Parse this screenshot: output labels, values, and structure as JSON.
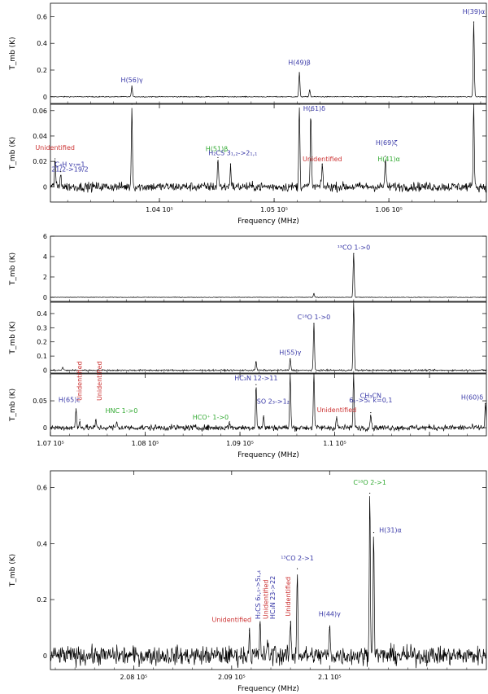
{
  "chart_data": [
    {
      "type": "line",
      "figure_group": 1,
      "panel": "top",
      "xlabel": "",
      "ylabel": "T_mb (K)",
      "xlim": [
        103050,
        106850
      ],
      "ylim": [
        -0.05,
        0.7
      ],
      "yticks": [
        0,
        0.2,
        0.4,
        0.6
      ],
      "xticks": [],
      "peaks": [
        {
          "x": 103760,
          "y": 0.08
        },
        {
          "x": 105220,
          "y": 0.18
        },
        {
          "x": 105310,
          "y": 0.05
        },
        {
          "x": 106740,
          "y": 0.56
        }
      ],
      "annotations": [
        {
          "text": "H(56)γ",
          "x": 103760,
          "y": 0.11,
          "color": "#3a3aa8"
        },
        {
          "text": "H(49)β",
          "x": 105220,
          "y": 0.24,
          "color": "#3a3aa8"
        },
        {
          "text": "H(39)α",
          "x": 106740,
          "y": 0.62,
          "color": "#3a3aa8"
        }
      ]
    },
    {
      "type": "line",
      "figure_group": 1,
      "panel": "bottom",
      "xlabel": "Frequency (MHz)",
      "ylabel": "T_mb (K)",
      "xlim": [
        103050,
        106850
      ],
      "ylim": [
        -0.012,
        0.065
      ],
      "yticks": [
        0,
        0.02,
        0.04,
        0.06
      ],
      "xticks": [
        104000,
        105000,
        106000
      ],
      "xtick_labels": [
        "1.04 10⁵",
        "1.05 10⁵",
        "1.06 10⁵"
      ],
      "peaks": [
        {
          "x": 103090,
          "y": 0.022
        },
        {
          "x": 103140,
          "y": 0.012
        },
        {
          "x": 103760,
          "y": 0.065
        },
        {
          "x": 104510,
          "y": 0.023
        },
        {
          "x": 104620,
          "y": 0.018
        },
        {
          "x": 105220,
          "y": 0.065
        },
        {
          "x": 105320,
          "y": 0.06
        },
        {
          "x": 105420,
          "y": 0.018
        },
        {
          "x": 105970,
          "y": 0.024
        },
        {
          "x": 106740,
          "y": 0.065
        }
      ],
      "annotations": [
        {
          "text": "Unidentified",
          "x": 103090,
          "y": 0.029,
          "color": "#cc3333"
        },
        {
          "text": "C₄H v₇=1",
          "x": 103220,
          "y": 0.016,
          "color": "#3a3aa8"
        },
        {
          "text": "21/2->19/2",
          "x": 103220,
          "y": 0.012,
          "color": "#3a3aa8"
        },
        {
          "text": "H(51)β",
          "x": 104500,
          "y": 0.028,
          "color": "#33aa33"
        },
        {
          "text": "H₂CS 3₁,₂->2₁,₁",
          "x": 104640,
          "y": 0.025,
          "color": "#3a3aa8"
        },
        {
          "text": "H(61)δ",
          "x": 105350,
          "y": 0.06,
          "color": "#3a3aa8"
        },
        {
          "text": "Unidentified",
          "x": 105420,
          "y": 0.02,
          "color": "#cc3333"
        },
        {
          "text": "H(69)ζ",
          "x": 105980,
          "y": 0.033,
          "color": "#3a3aa8"
        },
        {
          "text": "H(41)α",
          "x": 106000,
          "y": 0.02,
          "color": "#33aa33"
        }
      ]
    },
    {
      "type": "line",
      "figure_group": 2,
      "panel": "top",
      "xlabel": "",
      "ylabel": "T_mb (K)",
      "xlim": [
        107000,
        111600
      ],
      "ylim": [
        -0.4,
        6
      ],
      "yticks": [
        0,
        2,
        4,
        6
      ],
      "xticks": [],
      "peaks": [
        {
          "x": 110200,
          "y": 4.3
        },
        {
          "x": 109780,
          "y": 0.35
        }
      ],
      "annotations": [
        {
          "text": "¹³CO 1->0",
          "x": 110200,
          "y": 4.7,
          "color": "#3a3aa8"
        }
      ]
    },
    {
      "type": "line",
      "figure_group": 2,
      "panel": "middle",
      "xlabel": "",
      "ylabel": "T_mb (K)",
      "xlim": [
        107000,
        111600
      ],
      "ylim": [
        -0.02,
        0.48
      ],
      "yticks": [
        0,
        0.1,
        0.2,
        0.3,
        0.4
      ],
      "xticks": [],
      "peaks": [
        {
          "x": 107130,
          "y": 0.02
        },
        {
          "x": 109170,
          "y": 0.06
        },
        {
          "x": 109530,
          "y": 0.08
        },
        {
          "x": 109780,
          "y": 0.33
        },
        {
          "x": 110200,
          "y": 0.48
        }
      ],
      "annotations": [
        {
          "text": "C¹⁸O 1->0",
          "x": 109780,
          "y": 0.36,
          "color": "#3a3aa8"
        },
        {
          "text": "H(55)γ",
          "x": 109530,
          "y": 0.11,
          "color": "#3a3aa8"
        }
      ]
    },
    {
      "type": "line",
      "figure_group": 2,
      "panel": "bottom",
      "xlabel": "Frequency (MHz)",
      "ylabel": "T_mb (K)",
      "xlim": [
        107000,
        111600
      ],
      "ylim": [
        -0.015,
        0.1
      ],
      "yticks": [
        0,
        0.05
      ],
      "xticks": [
        107000,
        108000,
        109000,
        110000,
        111000
      ],
      "xtick_labels": [
        "1.07 10⁵",
        "1.08 10⁵",
        "1.09 10⁵",
        "1.1 10⁵",
        ""
      ],
      "peaks": [
        {
          "x": 107270,
          "y": 0.035
        },
        {
          "x": 107310,
          "y": 0.015
        },
        {
          "x": 107480,
          "y": 0.013
        },
        {
          "x": 107700,
          "y": 0.01
        },
        {
          "x": 108890,
          "y": 0.011
        },
        {
          "x": 109170,
          "y": 0.08
        },
        {
          "x": 109250,
          "y": 0.022
        },
        {
          "x": 109530,
          "y": 0.1
        },
        {
          "x": 109780,
          "y": 0.1
        },
        {
          "x": 110020,
          "y": 0.02
        },
        {
          "x": 110200,
          "y": 0.1
        },
        {
          "x": 110380,
          "y": 0.028
        },
        {
          "x": 111590,
          "y": 0.045
        }
      ],
      "annotations": [
        {
          "text": "H(65)ε",
          "x": 107200,
          "y": 0.048,
          "color": "#3a3aa8"
        },
        {
          "text": "Unidentified",
          "x": 107330,
          "y": 0.05,
          "color": "#cc3333",
          "rotate": true
        },
        {
          "text": "Unidentified",
          "x": 107540,
          "y": 0.05,
          "color": "#cc3333",
          "rotate": true
        },
        {
          "text": "HNC 1->0",
          "x": 107750,
          "y": 0.027,
          "color": "#33aa33"
        },
        {
          "text": "HCO⁺ 1->0",
          "x": 108690,
          "y": 0.015,
          "color": "#33aa33"
        },
        {
          "text": "HC₃N 12->11",
          "x": 109170,
          "y": 0.088,
          "color": "#3a3aa8"
        },
        {
          "text": "SO 2₃->1₂",
          "x": 109350,
          "y": 0.045,
          "color": "#3a3aa8"
        },
        {
          "text": "Unidentified",
          "x": 110020,
          "y": 0.029,
          "color": "#cc3333"
        },
        {
          "text": "CH₃CN",
          "x": 110380,
          "y": 0.055,
          "color": "#3a3aa8"
        },
        {
          "text": "6ₖ->5ₖ k=0,1",
          "x": 110380,
          "y": 0.047,
          "color": "#3a3aa8"
        },
        {
          "text": "H(60)δ",
          "x": 111450,
          "y": 0.052,
          "color": "#3a3aa8"
        }
      ]
    },
    {
      "type": "line",
      "figure_group": 3,
      "panel": "single",
      "xlabel": "Frequency (MHz)",
      "ylabel": "T_mb (K)",
      "xlim": [
        207150,
        211600
      ],
      "ylim": [
        -0.05,
        0.66
      ],
      "yticks": [
        0,
        0.2,
        0.4,
        0.6
      ],
      "xticks": [
        208000,
        209000,
        210000
      ],
      "xtick_labels": [
        "2.08 10⁵",
        "2.09 10⁵",
        "2.1 10⁵"
      ],
      "peaks": [
        {
          "x": 209180,
          "y": 0.09
        },
        {
          "x": 209290,
          "y": 0.11
        },
        {
          "x": 209370,
          "y": 0.04
        },
        {
          "x": 209440,
          "y": 0.03
        },
        {
          "x": 209600,
          "y": 0.12
        },
        {
          "x": 209670,
          "y": 0.31
        },
        {
          "x": 210000,
          "y": 0.1
        },
        {
          "x": 210410,
          "y": 0.58
        },
        {
          "x": 210450,
          "y": 0.44
        }
      ],
      "annotations": [
        {
          "text": "Unidentified",
          "x": 209000,
          "y": 0.12,
          "color": "#cc3333"
        },
        {
          "text": "H₂CS 6₁,₅->5₁,₄",
          "x": 209290,
          "y": 0.13,
          "color": "#3a3aa8",
          "rotate": true
        },
        {
          "text": "Unidentified",
          "x": 209370,
          "y": 0.13,
          "color": "#cc3333",
          "rotate": true
        },
        {
          "text": "HC₃N 23->22",
          "x": 209440,
          "y": 0.13,
          "color": "#3a3aa8",
          "rotate": true
        },
        {
          "text": "Unidentified",
          "x": 209600,
          "y": 0.14,
          "color": "#cc3333",
          "rotate": true
        },
        {
          "text": "¹³CO 2->1",
          "x": 209670,
          "y": 0.34,
          "color": "#3a3aa8"
        },
        {
          "text": "H(44)γ",
          "x": 210000,
          "y": 0.14,
          "color": "#3a3aa8"
        },
        {
          "text": "C¹⁸O 2->1",
          "x": 210410,
          "y": 0.61,
          "color": "#33aa33"
        },
        {
          "text": "H(31)α",
          "x": 210620,
          "y": 0.44,
          "color": "#3a3aa8"
        }
      ]
    }
  ]
}
